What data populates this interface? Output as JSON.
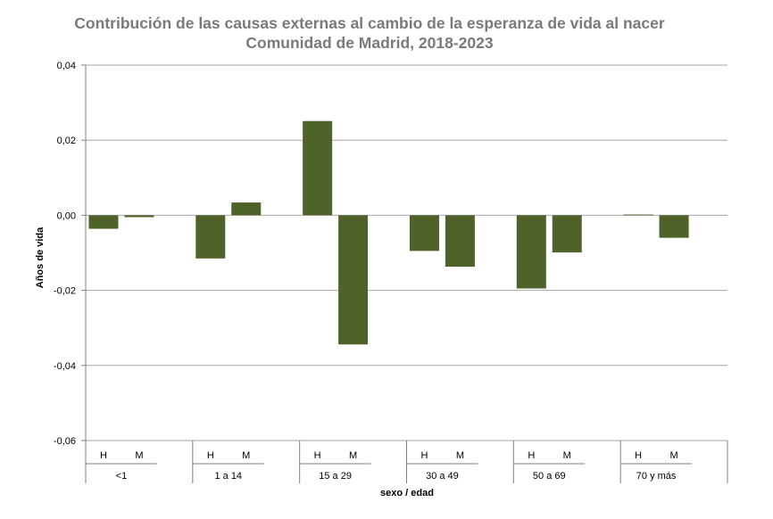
{
  "chart_data": {
    "type": "bar",
    "title": "Contribución de las causas externas al cambio de la esperanza de vida al nacer",
    "subtitle": "Comunidad de Madrid, 2018-2023",
    "xlabel": "sexo / edad",
    "ylabel": "Años de vida",
    "ylim": [
      -0.06,
      0.04
    ],
    "yticks": [
      "0,04",
      "0,02",
      "0,00",
      "-0,02",
      "-0,04",
      "-0,06"
    ],
    "ytick_values": [
      0.04,
      0.02,
      0.0,
      -0.02,
      -0.04,
      -0.06
    ],
    "grid": true,
    "groups": [
      "<1",
      "1 a 14",
      "15 a 29",
      "30 a 49",
      "50 a 69",
      "70 y más"
    ],
    "sex_labels": [
      "H",
      "M"
    ],
    "series": [
      {
        "name": "H",
        "values": [
          -0.0036,
          -0.0115,
          0.0251,
          -0.0095,
          -0.0195,
          0.0002
        ]
      },
      {
        "name": "M",
        "values": [
          -0.0005,
          0.0034,
          -0.0344,
          -0.0137,
          -0.0099,
          -0.006
        ]
      }
    ],
    "bar_color": "#4f6228"
  }
}
